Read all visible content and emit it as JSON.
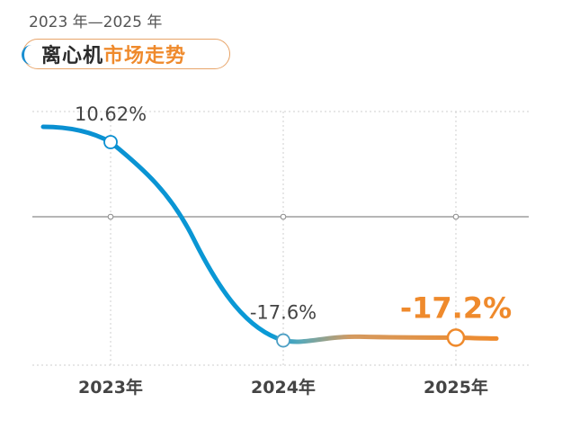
{
  "header": {
    "subtitle": "2023 年—2025 年",
    "title_part1": "离心机",
    "title_part2": "市场走势"
  },
  "colors": {
    "blue": "#0a8fd1",
    "orange": "#ef8a2c",
    "grid": "#cfcfcf",
    "axis": "#8a8a8a",
    "label": "#444444"
  },
  "chart_data": {
    "type": "line",
    "title": "离心机市场走势",
    "subtitle": "2023 年—2025 年",
    "categories": [
      "2023年",
      "2024年",
      "2025年"
    ],
    "series": [
      {
        "values": [
          10.62,
          -17.6,
          -17.2
        ],
        "value_labels": [
          "10.62%",
          "-17.6%",
          "-17.2%"
        ]
      }
    ],
    "ylim": [
      -19,
      12
    ],
    "baseline": 0,
    "grid": true,
    "legend": "none"
  }
}
